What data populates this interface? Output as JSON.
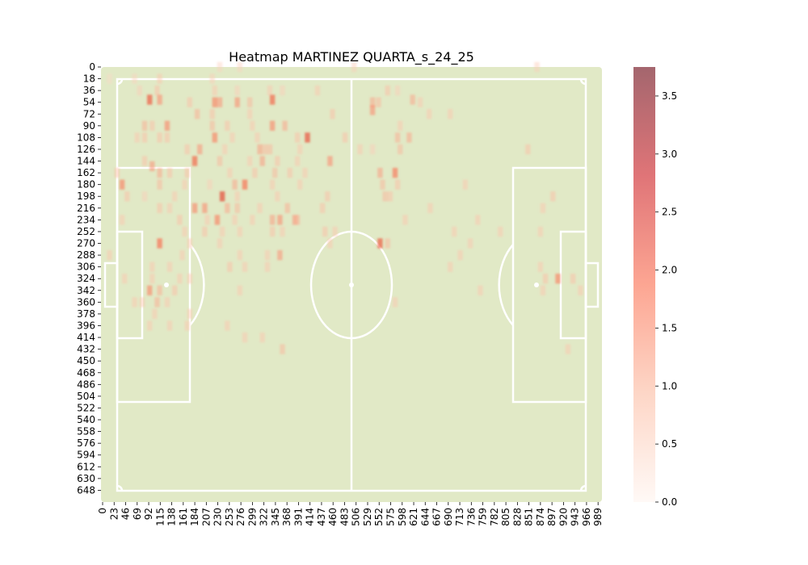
{
  "chart_data": {
    "type": "heatmap",
    "title": "Heatmap MARTINEZ QUARTA_s_24_25",
    "xlabel": "",
    "ylabel": "",
    "x_ticks": [
      "0",
      "23",
      "46",
      "69",
      "92",
      "115",
      "138",
      "161",
      "184",
      "207",
      "230",
      "253",
      "276",
      "299",
      "322",
      "345",
      "368",
      "391",
      "414",
      "437",
      "460",
      "483",
      "506",
      "529",
      "552",
      "575",
      "598",
      "621",
      "644",
      "667",
      "690",
      "713",
      "736",
      "759",
      "782",
      "805",
      "828",
      "851",
      "874",
      "897",
      "920",
      "943",
      "966",
      "989"
    ],
    "y_ticks": [
      "0",
      "18",
      "36",
      "54",
      "72",
      "90",
      "108",
      "126",
      "144",
      "162",
      "180",
      "198",
      "216",
      "234",
      "252",
      "270",
      "288",
      "306",
      "324",
      "342",
      "360",
      "378",
      "396",
      "414",
      "432",
      "450",
      "468",
      "486",
      "504",
      "522",
      "540",
      "558",
      "576",
      "594",
      "612",
      "630",
      "648"
    ],
    "xlim": [
      0,
      1000
    ],
    "ylim": [
      0,
      666
    ],
    "colorbar": {
      "range": [
        0,
        3.75
      ],
      "ticks": [
        "0.0",
        "0.5",
        "1.0",
        "1.5",
        "2.0",
        "2.5",
        "3.0",
        "3.5"
      ],
      "colors": [
        "#fff5f0",
        "#fcbba1",
        "#fb6a4a",
        "#cb181d",
        "#67000d"
      ],
      "alpha": 0.6
    },
    "pitch": {
      "background": "#e1e9c6",
      "line_color": "#ffffff"
    },
    "cells": [
      [
        508,
        0,
        0.7
      ],
      [
        873,
        0,
        0.7
      ],
      [
        240,
        0,
        0.6
      ],
      [
        280,
        0,
        0.6
      ],
      [
        20,
        18,
        0.5
      ],
      [
        70,
        18,
        0.6
      ],
      [
        120,
        18,
        0.8
      ],
      [
        225,
        18,
        0.7
      ],
      [
        80,
        36,
        0.7
      ],
      [
        115,
        36,
        0.9
      ],
      [
        230,
        36,
        0.8
      ],
      [
        275,
        36,
        0.7
      ],
      [
        340,
        36,
        0.8
      ],
      [
        365,
        36,
        0.7
      ],
      [
        435,
        36,
        0.8
      ],
      [
        575,
        36,
        0.9
      ],
      [
        595,
        36,
        0.7
      ],
      [
        100,
        50,
        2.1
      ],
      [
        120,
        50,
        1.5
      ],
      [
        180,
        54,
        0.9
      ],
      [
        230,
        54,
        1.7
      ],
      [
        240,
        54,
        1.4
      ],
      [
        275,
        54,
        1.5
      ],
      [
        300,
        54,
        1.0
      ],
      [
        345,
        50,
        2.0
      ],
      [
        545,
        54,
        1.2
      ],
      [
        625,
        50,
        1.2
      ],
      [
        640,
        54,
        0.8
      ],
      [
        557,
        54,
        1.0
      ],
      [
        195,
        72,
        1.1
      ],
      [
        225,
        72,
        0.9
      ],
      [
        300,
        72,
        0.8
      ],
      [
        465,
        72,
        0.9
      ],
      [
        545,
        66,
        1.5
      ],
      [
        658,
        72,
        0.8
      ],
      [
        700,
        72,
        0.8
      ],
      [
        90,
        90,
        1.1
      ],
      [
        105,
        90,
        0.9
      ],
      [
        135,
        90,
        1.6
      ],
      [
        225,
        90,
        1.0
      ],
      [
        255,
        90,
        0.9
      ],
      [
        305,
        90,
        0.8
      ],
      [
        345,
        90,
        1.6
      ],
      [
        370,
        90,
        1.2
      ],
      [
        600,
        90,
        0.8
      ],
      [
        75,
        108,
        0.8
      ],
      [
        90,
        108,
        0.9
      ],
      [
        120,
        108,
        0.9
      ],
      [
        135,
        108,
        0.9
      ],
      [
        230,
        108,
        1.7
      ],
      [
        265,
        108,
        0.8
      ],
      [
        315,
        108,
        0.8
      ],
      [
        395,
        108,
        0.9
      ],
      [
        415,
        108,
        2.2
      ],
      [
        490,
        108,
        0.9
      ],
      [
        595,
        108,
        1.1
      ],
      [
        618,
        108,
        1.2
      ],
      [
        175,
        126,
        0.9
      ],
      [
        200,
        126,
        1.4
      ],
      [
        250,
        126,
        0.8
      ],
      [
        320,
        126,
        1.3
      ],
      [
        330,
        126,
        1.0
      ],
      [
        340,
        126,
        1.0
      ],
      [
        400,
        126,
        0.8
      ],
      [
        520,
        126,
        0.8
      ],
      [
        545,
        126,
        0.7
      ],
      [
        600,
        126,
        1.0
      ],
      [
        855,
        126,
        0.9
      ],
      [
        90,
        144,
        0.9
      ],
      [
        105,
        152,
        1.4
      ],
      [
        190,
        144,
        2.0
      ],
      [
        240,
        144,
        1.0
      ],
      [
        300,
        144,
        0.8
      ],
      [
        325,
        144,
        1.3
      ],
      [
        355,
        144,
        0.9
      ],
      [
        395,
        144,
        0.8
      ],
      [
        460,
        144,
        1.5
      ],
      [
        35,
        162,
        0.9
      ],
      [
        120,
        162,
        1.2
      ],
      [
        140,
        162,
        0.9
      ],
      [
        175,
        162,
        0.9
      ],
      [
        260,
        162,
        0.8
      ],
      [
        310,
        162,
        0.9
      ],
      [
        350,
        162,
        1.0
      ],
      [
        380,
        162,
        0.9
      ],
      [
        410,
        162,
        0.8
      ],
      [
        560,
        162,
        1.3
      ],
      [
        590,
        162,
        1.8
      ],
      [
        45,
        180,
        1.7
      ],
      [
        120,
        180,
        1.0
      ],
      [
        170,
        180,
        0.8
      ],
      [
        220,
        180,
        0.7
      ],
      [
        270,
        180,
        1.2
      ],
      [
        290,
        180,
        1.9
      ],
      [
        345,
        180,
        0.8
      ],
      [
        400,
        180,
        0.8
      ],
      [
        565,
        180,
        1.0
      ],
      [
        595,
        180,
        0.9
      ],
      [
        730,
        180,
        0.8
      ],
      [
        55,
        198,
        0.9
      ],
      [
        90,
        198,
        0.7
      ],
      [
        150,
        198,
        0.8
      ],
      [
        245,
        198,
        2.3
      ],
      [
        275,
        198,
        0.8
      ],
      [
        355,
        198,
        0.8
      ],
      [
        455,
        198,
        0.9
      ],
      [
        570,
        198,
        1.0
      ],
      [
        580,
        198,
        0.9
      ],
      [
        905,
        198,
        0.9
      ],
      [
        120,
        216,
        0.9
      ],
      [
        140,
        216,
        0.8
      ],
      [
        190,
        216,
        1.6
      ],
      [
        210,
        216,
        1.5
      ],
      [
        255,
        216,
        1.2
      ],
      [
        275,
        216,
        1.0
      ],
      [
        320,
        216,
        0.8
      ],
      [
        375,
        216,
        1.1
      ],
      [
        445,
        216,
        0.9
      ],
      [
        660,
        216,
        0.8
      ],
      [
        885,
        216,
        0.8
      ],
      [
        45,
        234,
        0.8
      ],
      [
        160,
        234,
        0.9
      ],
      [
        215,
        234,
        0.8
      ],
      [
        235,
        234,
        1.7
      ],
      [
        270,
        234,
        0.8
      ],
      [
        305,
        234,
        0.8
      ],
      [
        345,
        234,
        1.3
      ],
      [
        360,
        234,
        1.5
      ],
      [
        390,
        234,
        1.4
      ],
      [
        395,
        234,
        1.1
      ],
      [
        610,
        234,
        0.8
      ],
      [
        755,
        234,
        0.8
      ],
      [
        170,
        252,
        0.8
      ],
      [
        210,
        252,
        0.9
      ],
      [
        245,
        252,
        0.8
      ],
      [
        280,
        252,
        0.8
      ],
      [
        345,
        252,
        0.9
      ],
      [
        365,
        252,
        0.8
      ],
      [
        450,
        252,
        0.9
      ],
      [
        470,
        252,
        0.8
      ],
      [
        708,
        252,
        0.8
      ],
      [
        800,
        252,
        0.8
      ],
      [
        880,
        252,
        0.8
      ],
      [
        120,
        270,
        1.9
      ],
      [
        180,
        270,
        0.8
      ],
      [
        240,
        270,
        0.8
      ],
      [
        460,
        270,
        0.8
      ],
      [
        560,
        270,
        2.1
      ],
      [
        575,
        270,
        1.0
      ],
      [
        740,
        270,
        0.8
      ],
      [
        20,
        288,
        0.8
      ],
      [
        165,
        288,
        0.8
      ],
      [
        280,
        288,
        0.8
      ],
      [
        335,
        288,
        0.8
      ],
      [
        360,
        288,
        1.4
      ],
      [
        720,
        288,
        0.8
      ],
      [
        105,
        306,
        0.8
      ],
      [
        140,
        306,
        0.8
      ],
      [
        260,
        306,
        0.9
      ],
      [
        290,
        306,
        0.8
      ],
      [
        335,
        306,
        0.8
      ],
      [
        700,
        306,
        0.8
      ],
      [
        880,
        306,
        0.8
      ],
      [
        50,
        324,
        0.8
      ],
      [
        105,
        324,
        0.8
      ],
      [
        160,
        324,
        0.8
      ],
      [
        180,
        324,
        0.8
      ],
      [
        890,
        324,
        0.9
      ],
      [
        915,
        324,
        1.7
      ],
      [
        945,
        324,
        0.9
      ],
      [
        100,
        342,
        1.6
      ],
      [
        120,
        342,
        1.1
      ],
      [
        150,
        342,
        0.9
      ],
      [
        280,
        342,
        0.8
      ],
      [
        760,
        342,
        0.8
      ],
      [
        885,
        342,
        0.8
      ],
      [
        960,
        342,
        0.8
      ],
      [
        70,
        360,
        0.8
      ],
      [
        85,
        360,
        0.8
      ],
      [
        115,
        360,
        1.1
      ],
      [
        135,
        360,
        0.8
      ],
      [
        590,
        360,
        0.8
      ],
      [
        110,
        378,
        0.8
      ],
      [
        180,
        378,
        0.8
      ],
      [
        100,
        396,
        0.8
      ],
      [
        140,
        396,
        0.8
      ],
      [
        175,
        396,
        0.8
      ],
      [
        255,
        396,
        0.8
      ],
      [
        290,
        414,
        0.8
      ],
      [
        325,
        414,
        0.8
      ],
      [
        365,
        432,
        1.0
      ],
      [
        935,
        432,
        0.8
      ]
    ]
  }
}
